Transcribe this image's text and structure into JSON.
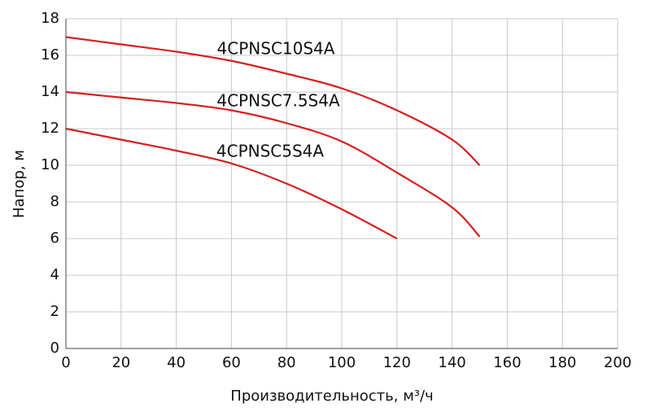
{
  "chart_data": {
    "type": "line",
    "x_label": "Производительность, м³/ч",
    "y_label": "Напор, м",
    "xlim": [
      0,
      200
    ],
    "xticks": [
      0,
      20,
      40,
      60,
      80,
      100,
      120,
      140,
      160,
      180,
      200
    ],
    "ylim": [
      0,
      18
    ],
    "yticks": [
      0,
      2,
      4,
      6,
      8,
      10,
      12,
      14,
      16,
      18
    ],
    "grid": true,
    "series": [
      {
        "name": "4CPNSC10S4A",
        "color": "#d42020",
        "x": [
          0,
          20,
          40,
          60,
          80,
          100,
          120,
          140,
          150
        ],
        "values": [
          17,
          16.6,
          16.2,
          15.7,
          15.0,
          14.2,
          13.0,
          11.4,
          10.0
        ]
      },
      {
        "name": "4CPNSC7.5S4A",
        "color": "#d42020",
        "x": [
          0,
          20,
          40,
          60,
          80,
          100,
          120,
          140,
          150
        ],
        "values": [
          14,
          13.7,
          13.4,
          13.0,
          12.3,
          11.3,
          9.6,
          7.7,
          6.1
        ]
      },
      {
        "name": "4CPNSC5S4A",
        "color": "#d42020",
        "x": [
          0,
          20,
          40,
          60,
          80,
          100,
          120
        ],
        "values": [
          12,
          11.4,
          10.8,
          10.1,
          9.0,
          7.6,
          6.0
        ]
      }
    ]
  }
}
